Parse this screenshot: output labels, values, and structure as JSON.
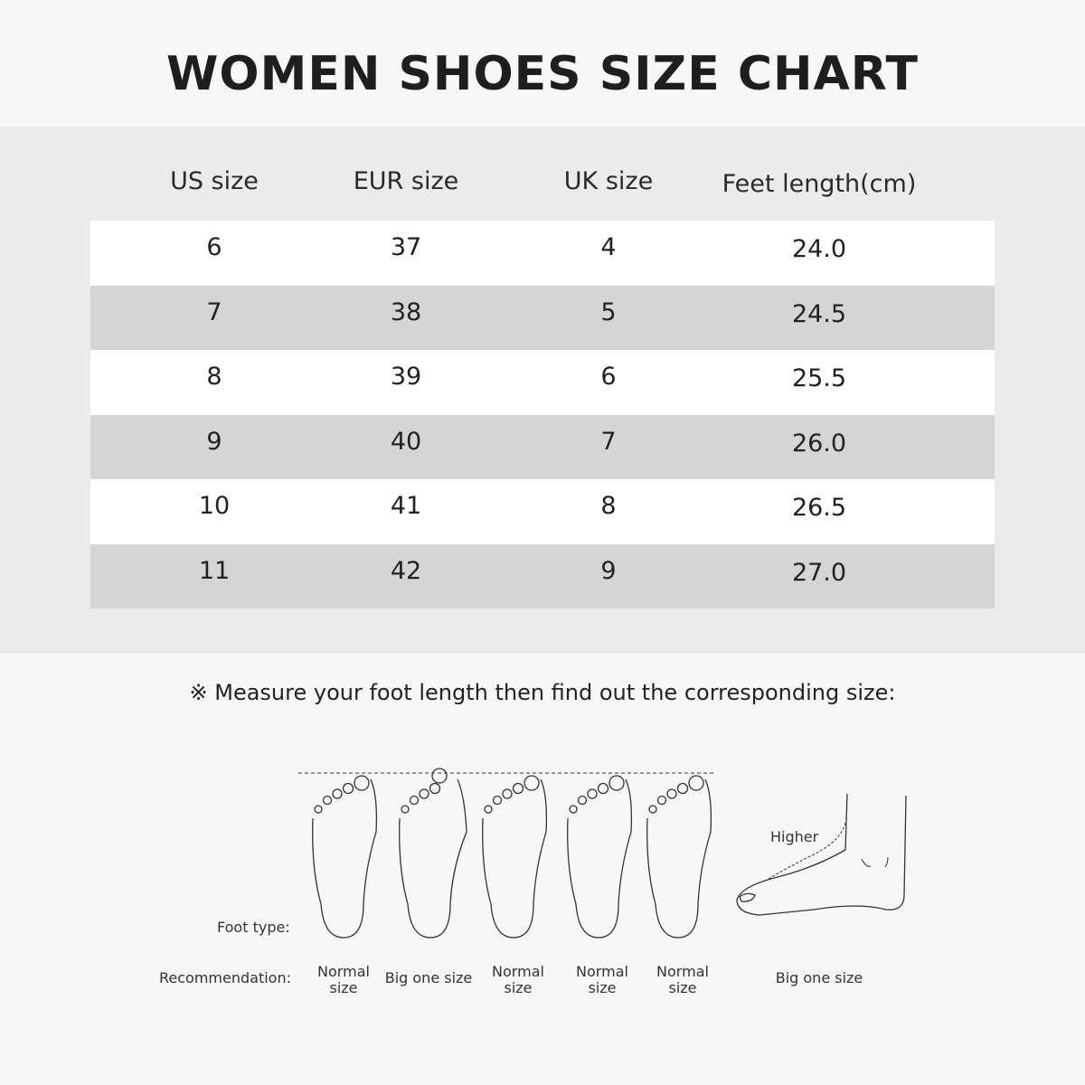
{
  "title": "WOMEN SHOES SIZE CHART",
  "table": {
    "headers": [
      "US size",
      "EUR size",
      "UK size",
      "Feet length(cm)"
    ],
    "rows": [
      [
        "6",
        "37",
        "4",
        "24.0"
      ],
      [
        "7",
        "38",
        "5",
        "24.5"
      ],
      [
        "8",
        "39",
        "6",
        "25.5"
      ],
      [
        "9",
        "40",
        "7",
        "26.0"
      ],
      [
        "10",
        "41",
        "8",
        "26.5"
      ],
      [
        "11",
        "42",
        "9",
        "27.0"
      ]
    ]
  },
  "note": "※ Measure your foot length then find out the corresponding size:",
  "foot_guide": {
    "foot_type_label": "Foot type:",
    "recommendation_label": "Recommendation:",
    "higher_label": "Higher",
    "recommendations": [
      "Normal size",
      "Big one size",
      "Normal size",
      "Normal size",
      "Normal size",
      "Big one size"
    ]
  },
  "colors": {
    "band": "#ebebeb",
    "row_alt": "#d5d5d5",
    "row": "#ffffff"
  }
}
